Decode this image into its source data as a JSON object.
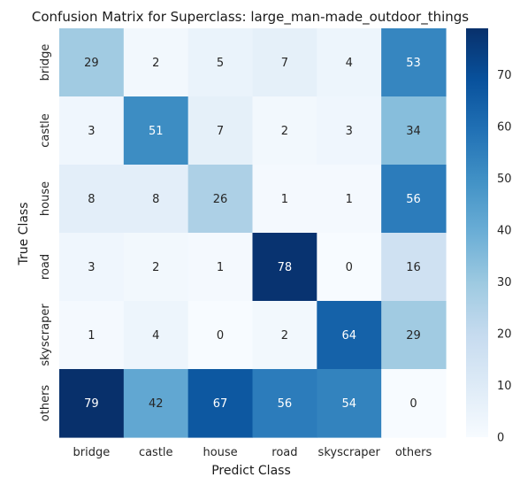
{
  "chart_data": {
    "type": "heatmap",
    "title": "Confusion Matrix for Superclass: large_man-made_outdoor_things",
    "xlabel": "Predict Class",
    "ylabel": "True Class",
    "x_categories": [
      "bridge",
      "castle",
      "house",
      "road",
      "skyscraper",
      "others"
    ],
    "y_categories": [
      "bridge",
      "castle",
      "house",
      "road",
      "skyscraper",
      "others"
    ],
    "values": [
      [
        29,
        2,
        5,
        7,
        4,
        53
      ],
      [
        3,
        51,
        7,
        2,
        3,
        34
      ],
      [
        8,
        8,
        26,
        1,
        1,
        56
      ],
      [
        3,
        2,
        1,
        78,
        0,
        16
      ],
      [
        1,
        4,
        0,
        2,
        64,
        29
      ],
      [
        79,
        42,
        67,
        56,
        54,
        0
      ]
    ],
    "colormap": "Blues",
    "colorbar": {
      "range": [
        0,
        79
      ],
      "ticks": [
        0,
        10,
        20,
        30,
        40,
        50,
        60,
        70
      ],
      "tick_labels": [
        "0",
        "10",
        "20",
        "30",
        "40",
        "50",
        "60",
        "70"
      ]
    },
    "grid": false,
    "legend": "colorbar-right"
  }
}
